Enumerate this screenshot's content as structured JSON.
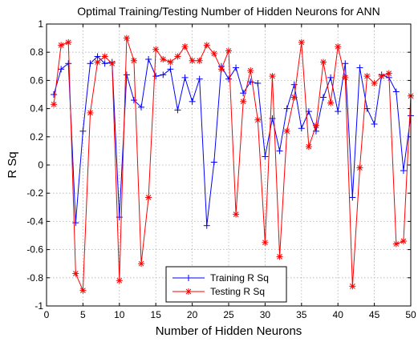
{
  "chart_data": {
    "type": "line",
    "title": "Optimal Training/Testing Number of Hidden Neurons for ANN",
    "xlabel": "Number of Hidden Neurons",
    "ylabel": "R Sq",
    "xlim": [
      0,
      50
    ],
    "ylim": [
      -1,
      1
    ],
    "xticks": [
      0,
      5,
      10,
      15,
      20,
      25,
      30,
      35,
      40,
      45,
      50
    ],
    "yticks": [
      -1,
      -0.8,
      -0.6,
      -0.4,
      -0.2,
      0,
      0.2,
      0.4,
      0.6,
      0.8,
      1
    ],
    "xtick_labels": [
      "0",
      "5",
      "10",
      "15",
      "20",
      "25",
      "30",
      "35",
      "40",
      "45",
      "50"
    ],
    "ytick_labels": [
      "-1",
      "-0.8",
      "-0.6",
      "-0.4",
      "-0.2",
      "0",
      "0.2",
      "0.4",
      "0.6",
      "0.8",
      "1"
    ],
    "grid": true,
    "legend_position": "bottom-center",
    "x": [
      1,
      2,
      3,
      4,
      5,
      6,
      7,
      8,
      9,
      10,
      11,
      12,
      13,
      14,
      15,
      16,
      17,
      18,
      19,
      20,
      21,
      22,
      23,
      24,
      25,
      26,
      27,
      28,
      29,
      30,
      31,
      32,
      33,
      34,
      35,
      36,
      37,
      38,
      39,
      40,
      41,
      42,
      43,
      44,
      45,
      46,
      47,
      48,
      49,
      50
    ],
    "series": [
      {
        "name": "Training R Sq",
        "color": "#0000ff",
        "marker": "plus",
        "values": [
          0.5,
          0.68,
          0.72,
          -0.41,
          0.24,
          0.72,
          0.77,
          0.72,
          0.73,
          -0.37,
          0.64,
          0.46,
          0.41,
          0.75,
          0.63,
          0.64,
          0.68,
          0.39,
          0.62,
          0.45,
          0.61,
          -0.43,
          0.02,
          0.7,
          0.61,
          0.69,
          0.51,
          0.59,
          0.58,
          0.06,
          0.33,
          0.1,
          0.4,
          0.57,
          0.26,
          0.38,
          0.24,
          0.48,
          0.62,
          0.38,
          0.72,
          -0.23,
          0.69,
          0.4,
          0.29,
          0.64,
          0.62,
          0.52,
          -0.04,
          0.35
        ]
      },
      {
        "name": "Testing R Sq",
        "color": "#ff0000",
        "marker": "star",
        "values": [
          0.43,
          0.85,
          0.87,
          -0.77,
          -0.89,
          0.37,
          0.73,
          0.77,
          0.72,
          -0.82,
          0.9,
          0.74,
          -0.7,
          -0.23,
          0.82,
          0.75,
          0.73,
          0.77,
          0.84,
          0.74,
          0.74,
          0.85,
          0.79,
          0.68,
          0.81,
          -0.35,
          0.45,
          0.67,
          0.32,
          -0.55,
          0.63,
          -0.65,
          0.24,
          0.48,
          0.87,
          0.13,
          0.28,
          0.73,
          0.44,
          0.84,
          0.62,
          -0.86,
          -0.02,
          0.63,
          0.58,
          0.63,
          0.65,
          -0.56,
          -0.54,
          0.49
        ]
      }
    ]
  }
}
